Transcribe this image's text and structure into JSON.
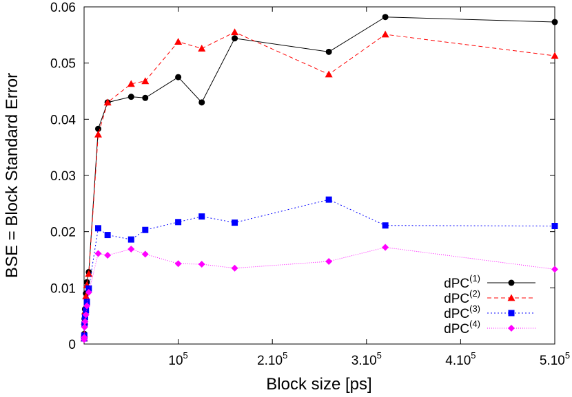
{
  "chart_data": {
    "type": "line",
    "title": "",
    "xlabel": "Block size [ps]",
    "ylabel": "BSE = Block Standard Error",
    "xlim": [
      0,
      500000
    ],
    "ylim": [
      0,
      0.06
    ],
    "grid": false,
    "legend_position": "bottom-right",
    "x_ticks": [
      {
        "value": 100000,
        "mantissa": "10",
        "exponent": "5"
      },
      {
        "value": 200000,
        "mantissa": "2.10",
        "exponent": "5"
      },
      {
        "value": 300000,
        "mantissa": "3.10",
        "exponent": "5"
      },
      {
        "value": 400000,
        "mantissa": "4.10",
        "exponent": "5"
      },
      {
        "value": 500000,
        "mantissa": "5.10",
        "exponent": "5"
      }
    ],
    "y_ticks": [
      {
        "value": 0,
        "label": "0"
      },
      {
        "value": 0.01,
        "label": "0.01"
      },
      {
        "value": 0.02,
        "label": "0.02"
      },
      {
        "value": 0.03,
        "label": "0.03"
      },
      {
        "value": 0.04,
        "label": "0.04"
      },
      {
        "value": 0.05,
        "label": "0.05"
      },
      {
        "value": 0.06,
        "label": "0.06"
      }
    ],
    "series": [
      {
        "name": "dPC",
        "superscript": "(1)",
        "color": "#000000",
        "marker": "circle",
        "dash": "",
        "x": [
          100,
          200,
          500,
          1000,
          2000,
          3000,
          5000,
          15000,
          25000,
          50000,
          65000,
          100000,
          125000,
          160000,
          260000,
          320000,
          500000
        ],
        "y": [
          0.0012,
          0.0018,
          0.0045,
          0.0062,
          0.009,
          0.011,
          0.0128,
          0.0383,
          0.043,
          0.044,
          0.0438,
          0.0475,
          0.043,
          0.0544,
          0.052,
          0.0582,
          0.0573
        ]
      },
      {
        "name": "dPC",
        "superscript": "(2)",
        "color": "#ff0000",
        "marker": "triangle",
        "dash": "6,4",
        "x": [
          100,
          200,
          500,
          1000,
          2000,
          3000,
          5000,
          15000,
          25000,
          50000,
          65000,
          100000,
          125000,
          160000,
          260000,
          320000,
          500000
        ],
        "y": [
          0.001,
          0.0017,
          0.004,
          0.0058,
          0.0085,
          0.0105,
          0.0125,
          0.0373,
          0.043,
          0.0463,
          0.0468,
          0.0538,
          0.0526,
          0.0555,
          0.048,
          0.0551,
          0.0513
        ]
      },
      {
        "name": "dPC",
        "superscript": "(3)",
        "color": "#0000ff",
        "marker": "square",
        "dash": "2,3",
        "x": [
          100,
          200,
          500,
          1000,
          2000,
          3000,
          5000,
          15000,
          25000,
          50000,
          65000,
          100000,
          125000,
          160000,
          260000,
          320000,
          500000
        ],
        "y": [
          0.001,
          0.0015,
          0.0035,
          0.0048,
          0.006,
          0.0075,
          0.0099,
          0.0206,
          0.0194,
          0.0186,
          0.0203,
          0.0217,
          0.0227,
          0.0216,
          0.0257,
          0.0211,
          0.021
        ]
      },
      {
        "name": "dPC",
        "superscript": "(4)",
        "color": "#ff00ff",
        "marker": "diamond",
        "dash": "1,2",
        "x": [
          100,
          200,
          500,
          1000,
          2000,
          3000,
          5000,
          15000,
          25000,
          50000,
          65000,
          100000,
          125000,
          160000,
          260000,
          320000,
          500000
        ],
        "y": [
          0.0008,
          0.0012,
          0.003,
          0.004,
          0.0052,
          0.0068,
          0.0092,
          0.0161,
          0.0158,
          0.0169,
          0.016,
          0.0143,
          0.0142,
          0.0135,
          0.0147,
          0.0172,
          0.0133
        ]
      }
    ]
  }
}
